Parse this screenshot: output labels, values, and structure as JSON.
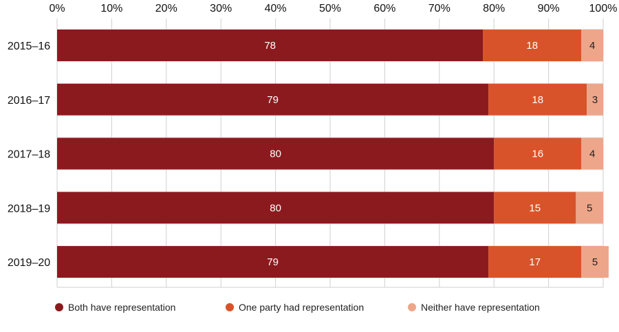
{
  "chart_data": {
    "type": "bar",
    "orientation": "horizontal",
    "stacked": true,
    "categories": [
      "2015–16",
      "2016–17",
      "2017–18",
      "2018–19",
      "2019–20"
    ],
    "series": [
      {
        "name": "Both have representation",
        "values": [
          78,
          79,
          80,
          80,
          79
        ],
        "color": "#8b1a1f"
      },
      {
        "name": "One party had representation",
        "values": [
          18,
          18,
          16,
          15,
          17
        ],
        "color": "#d9532a"
      },
      {
        "name": "Neither have representation",
        "values": [
          4,
          3,
          4,
          5,
          5
        ],
        "color": "#eda689"
      }
    ],
    "x_ticks": [
      "0%",
      "10%",
      "20%",
      "30%",
      "40%",
      "50%",
      "60%",
      "70%",
      "80%",
      "90%",
      "100%"
    ],
    "xlim": [
      0,
      100
    ],
    "title": "",
    "xlabel": "",
    "ylabel": "",
    "grid": true,
    "legend_position": "bottom",
    "colors": {
      "band": "#e6e6e6",
      "grid": "#cfcfcf"
    }
  }
}
